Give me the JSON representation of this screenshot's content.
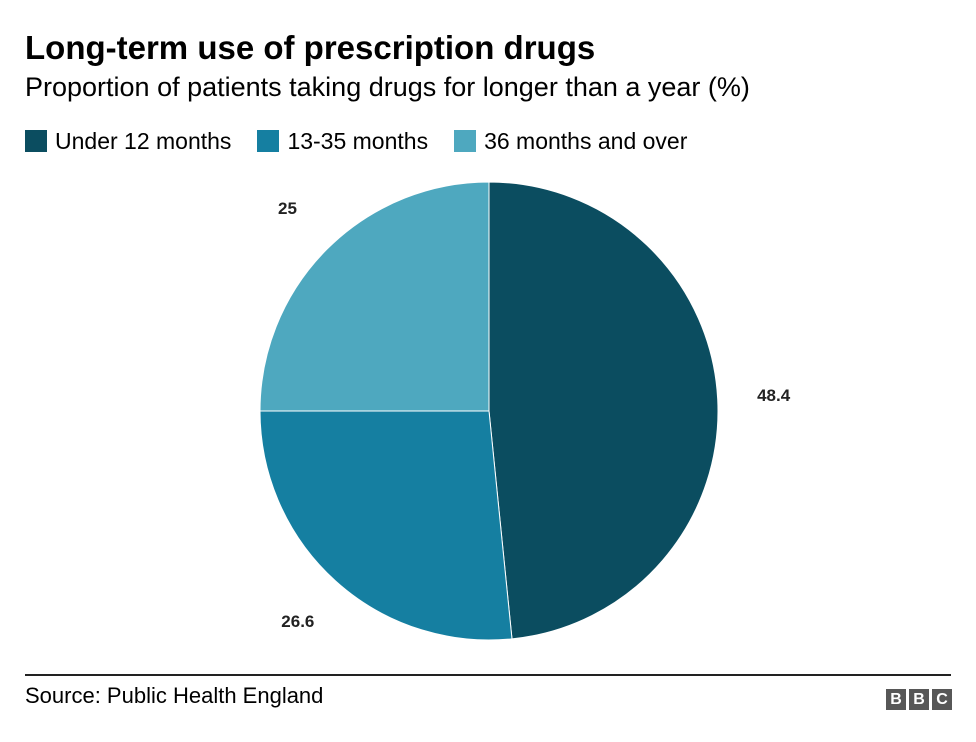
{
  "title": "Long-term use of prescription drugs",
  "subtitle": "Proportion of patients taking drugs for longer than a year (%)",
  "source": "Source: Public Health England",
  "logo": {
    "letters": [
      "B",
      "B",
      "C"
    ]
  },
  "colors": {
    "under_12": "#0b4d60",
    "months_13_35": "#157fa1",
    "months_36_over": "#4ea8bf"
  },
  "legend": [
    {
      "label": "Under 12 months",
      "color": "#0b4d60"
    },
    {
      "label": "13-35 months",
      "color": "#157fa1"
    },
    {
      "label": "36 months and over",
      "color": "#4ea8bf"
    }
  ],
  "chart_data": {
    "type": "pie",
    "title": "Long-term use of prescription drugs",
    "subtitle": "Proportion of patients taking drugs for longer than a year (%)",
    "slices": [
      {
        "name": "Under 12 months",
        "value": 48.4,
        "label": "48.4",
        "color": "#0b4d60"
      },
      {
        "name": "13-35 months",
        "value": 26.6,
        "label": "26.6",
        "color": "#157fa1"
      },
      {
        "name": "36 months and over",
        "value": 25,
        "label": "25",
        "color": "#4ea8bf"
      }
    ],
    "legend_position": "top-left",
    "start_angle": "12 o'clock",
    "direction": "clockwise"
  }
}
